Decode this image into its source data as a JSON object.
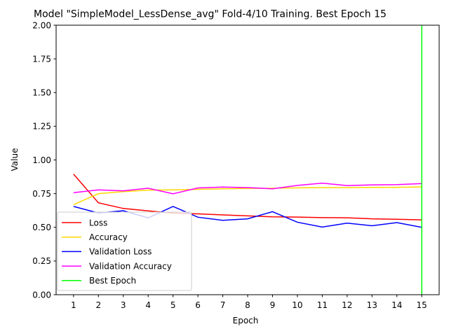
{
  "chart_data": {
    "type": "line",
    "title": "Model \"SimpleModel_LessDense_avg\" Fold-4/10 Training. Best Epoch 15",
    "xlabel": "Epoch",
    "ylabel": "Value",
    "xlim": [
      0.3,
      15.7
    ],
    "ylim": [
      0,
      2
    ],
    "x_ticks": [
      1,
      2,
      3,
      4,
      5,
      6,
      7,
      8,
      9,
      10,
      11,
      12,
      13,
      14,
      15
    ],
    "y_ticks": [
      "0.00",
      "0.25",
      "0.50",
      "0.75",
      "1.00",
      "1.25",
      "1.50",
      "1.75",
      "2.00"
    ],
    "grid": false,
    "legend_position": "lower-left",
    "x": [
      1,
      2,
      3,
      4,
      5,
      6,
      7,
      8,
      9,
      10,
      11,
      12,
      13,
      14,
      15
    ],
    "series": [
      {
        "name": "Loss",
        "color": "#ff0000",
        "values": [
          0.895,
          0.682,
          0.64,
          0.622,
          0.605,
          0.6,
          0.592,
          0.585,
          0.578,
          0.576,
          0.572,
          0.571,
          0.563,
          0.56,
          0.555
        ]
      },
      {
        "name": "Accuracy",
        "color": "#ffd700",
        "values": [
          0.668,
          0.75,
          0.765,
          0.776,
          0.778,
          0.782,
          0.786,
          0.789,
          0.79,
          0.793,
          0.795,
          0.795,
          0.796,
          0.797,
          0.8
        ]
      },
      {
        "name": "Validation Loss",
        "color": "#0000ff",
        "values": [
          0.655,
          0.606,
          0.623,
          0.57,
          0.655,
          0.575,
          0.552,
          0.563,
          0.616,
          0.538,
          0.502,
          0.531,
          0.512,
          0.535,
          0.5
        ]
      },
      {
        "name": "Validation  Accuracy",
        "color": "#ff00ff",
        "values": [
          0.757,
          0.778,
          0.771,
          0.79,
          0.749,
          0.792,
          0.799,
          0.795,
          0.786,
          0.811,
          0.828,
          0.81,
          0.815,
          0.817,
          0.825
        ]
      }
    ],
    "best_epoch": {
      "name": "Best Epoch",
      "color": "#00ff00",
      "x": 15
    }
  }
}
